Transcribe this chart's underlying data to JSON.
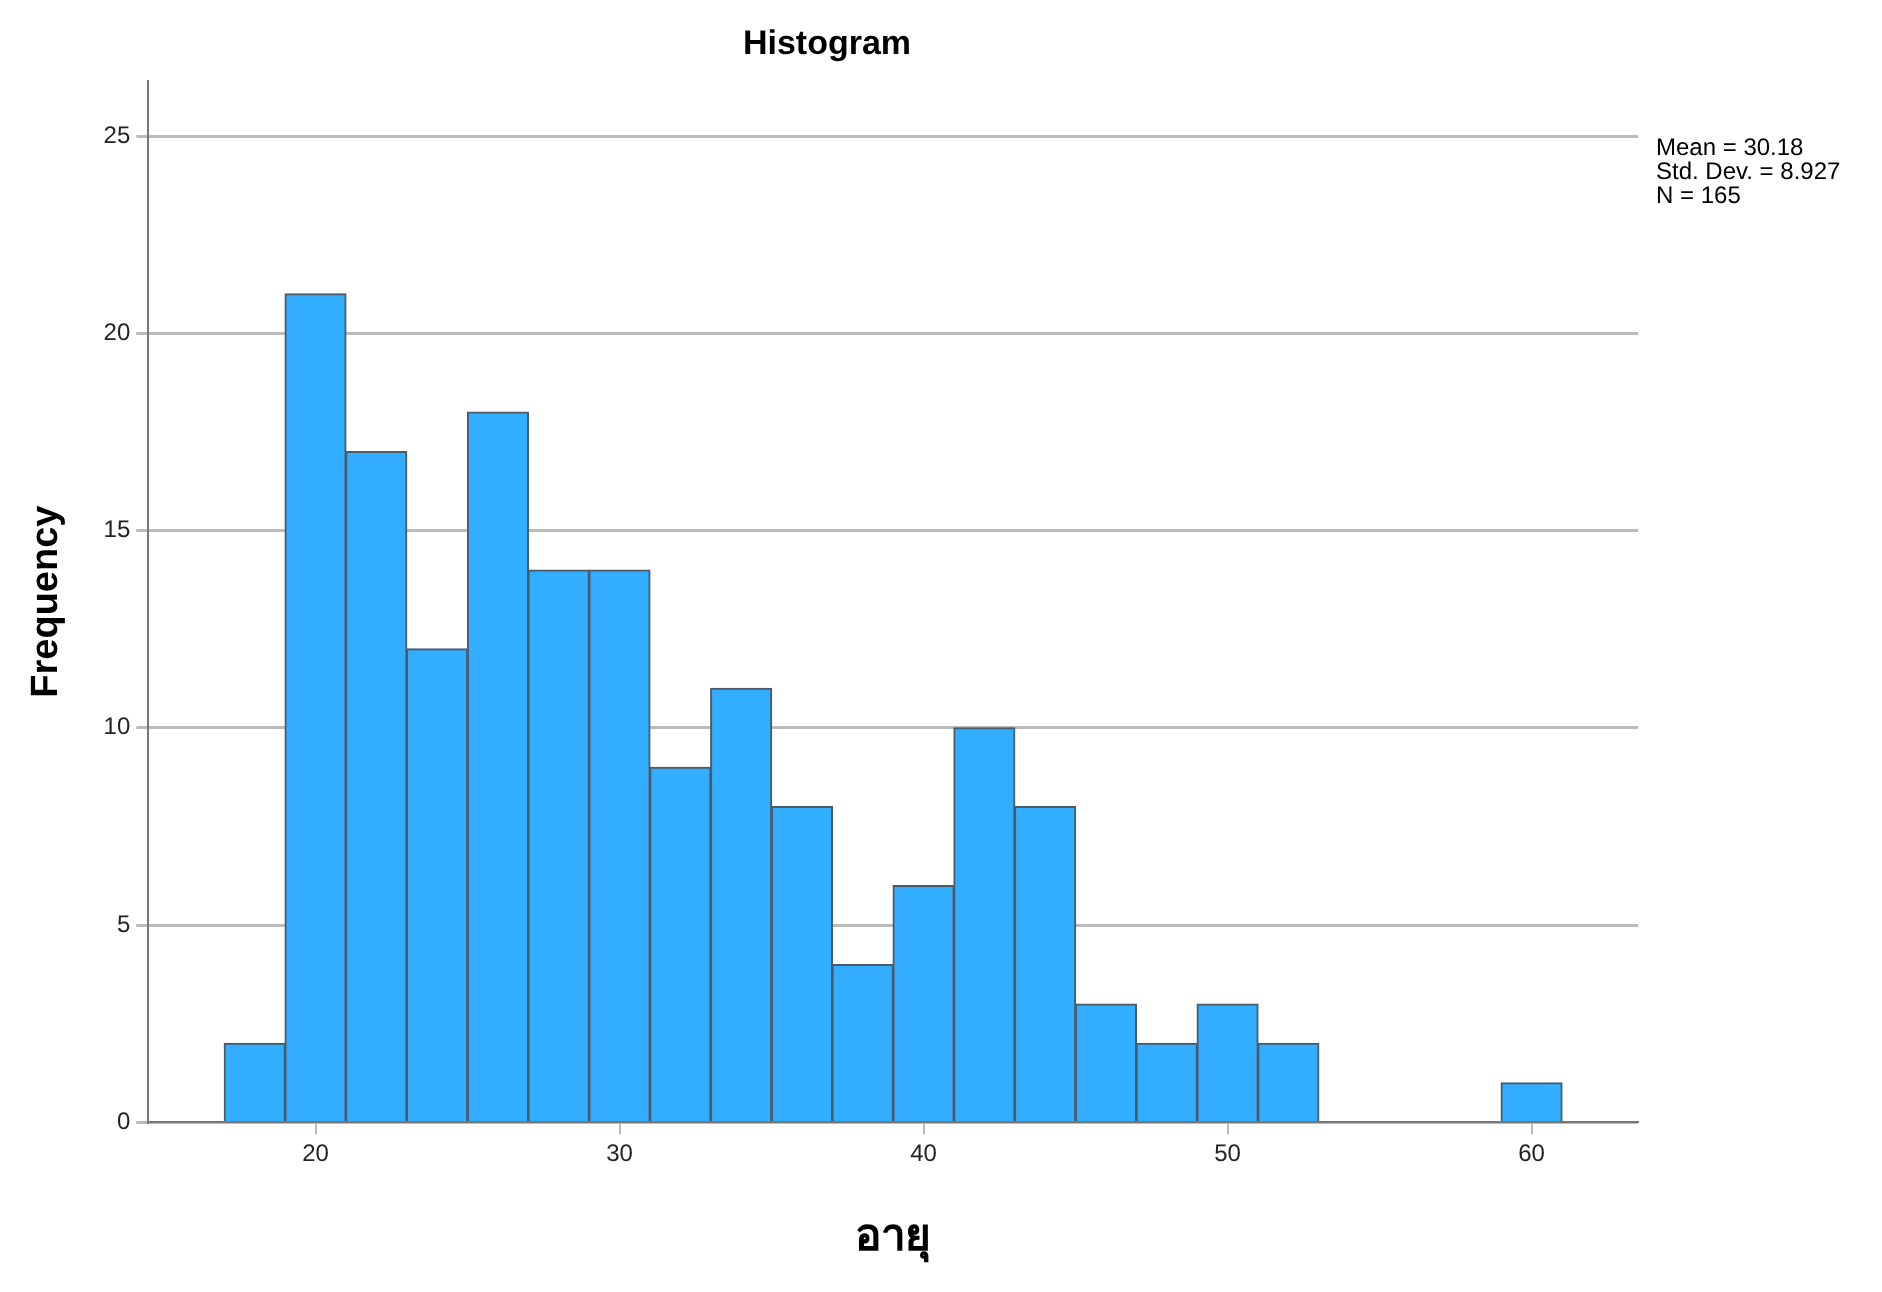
{
  "chart_data": {
    "type": "histogram",
    "title": "Histogram",
    "xlabel": "อายุ",
    "ylabel": "Frequency",
    "bins": [
      17,
      19,
      21,
      23,
      25,
      27,
      29,
      31,
      33,
      35,
      37,
      39,
      41,
      43,
      45,
      47,
      49,
      51,
      53,
      55,
      57,
      59,
      61
    ],
    "values": [
      2,
      21,
      17,
      12,
      18,
      14,
      14,
      9,
      11,
      8,
      4,
      6,
      10,
      8,
      3,
      2,
      3,
      2,
      0,
      0,
      0,
      1
    ],
    "color": "#33adff",
    "xlim": [
      14.5,
      63.5
    ],
    "xticks": [
      20,
      30,
      40,
      50,
      60
    ],
    "ylim": [
      0,
      26.4
    ],
    "yticks": [
      0,
      5,
      10,
      15,
      20,
      25
    ],
    "grid": "y",
    "legend": false,
    "annotations": [
      "Mean = 30.18",
      "Std. Dev. = 8.927",
      "N = 165"
    ]
  }
}
